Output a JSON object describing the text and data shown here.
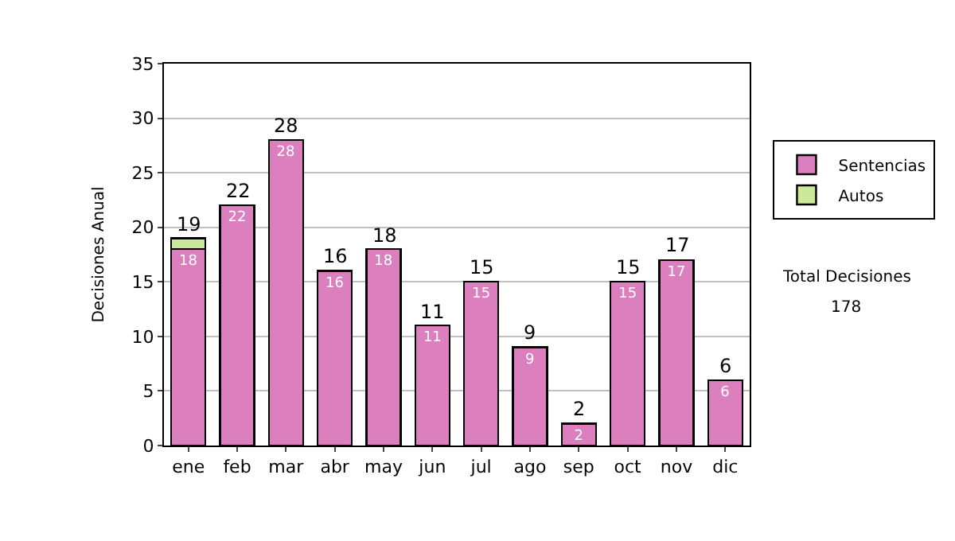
{
  "chart_data": {
    "type": "bar",
    "stacked": true,
    "ylabel": "Decisiones Anual",
    "categories": [
      "ene",
      "feb",
      "mar",
      "abr",
      "may",
      "jun",
      "jul",
      "ago",
      "sep",
      "oct",
      "nov",
      "dic"
    ],
    "series": [
      {
        "name": "Sentencias",
        "color": "#db7fbf",
        "values": [
          18,
          22,
          28,
          16,
          18,
          11,
          15,
          9,
          2,
          15,
          17,
          6
        ],
        "value_labels": [
          "18",
          "22",
          "28",
          "16",
          "18",
          "11",
          "15",
          "9",
          "2",
          "15",
          "17",
          "6"
        ]
      },
      {
        "name": "Autos",
        "color": "#cce89a",
        "values": [
          1,
          null,
          null,
          null,
          null,
          null,
          null,
          null,
          null,
          null,
          null,
          null
        ]
      }
    ],
    "totals": [
      "19",
      "22",
      "28",
      "16",
      "18",
      "11",
      "15",
      "9",
      "2",
      "15",
      "17",
      "6"
    ],
    "ylim": [
      0,
      35
    ],
    "yticks": [
      0,
      5,
      10,
      15,
      20,
      25,
      30,
      35
    ],
    "grid": "y",
    "legend": "right",
    "annotations": [
      "Total Decisiones",
      "178"
    ]
  }
}
